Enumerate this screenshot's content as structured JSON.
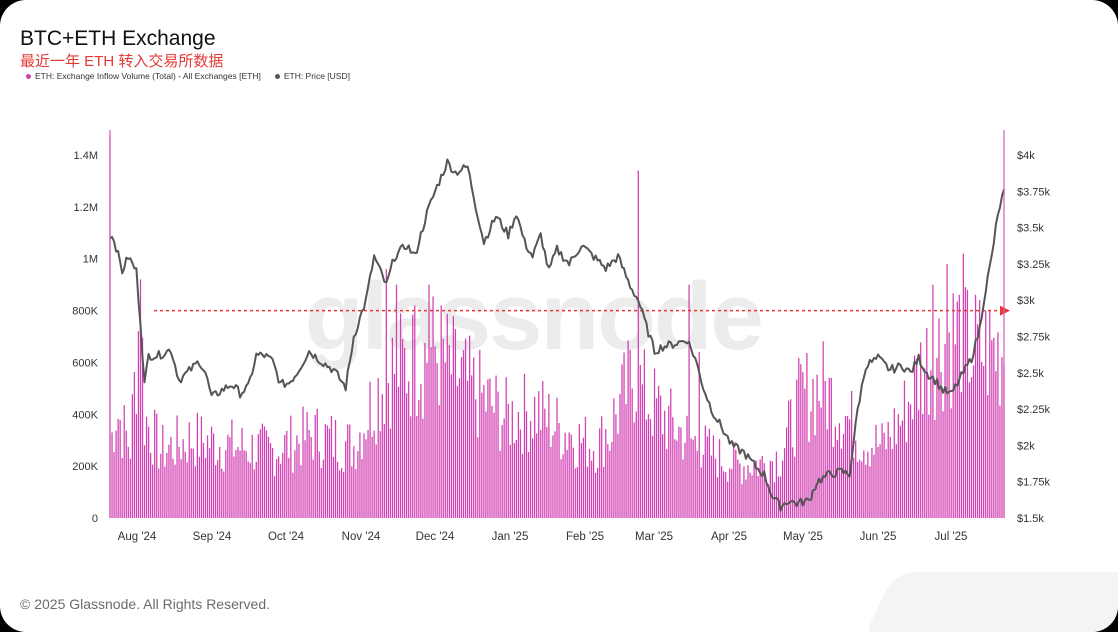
{
  "title": "BTC+ETH Exchange",
  "subtitle": "最近一年 ETH 转入交易所数据",
  "footer": "© 2025 Glassnode. All Rights Reserved.",
  "watermark": "glassnode",
  "colors": {
    "inflow": "#d23fb2",
    "price": "#555555",
    "threshold": "#e53935"
  },
  "chart_data": {
    "type": "bar",
    "title": "BTC+ETH Exchange",
    "legend": [
      {
        "name": "ETH: Exchange Inflow Volume (Total) - All Exchanges [ETH]",
        "color": "#d23fb2"
      },
      {
        "name": "ETH: Price [USD]",
        "color": "#555555"
      }
    ],
    "legend_position": "top-left",
    "x_ticks": [
      "Aug '24",
      "Sep '24",
      "Oct '24",
      "Nov '24",
      "Dec '24",
      "Jan '25",
      "Feb '25",
      "Mar '25",
      "Apr '25",
      "May '25",
      "Jun '25",
      "Jul '25"
    ],
    "y_left": {
      "ticks": [
        "0",
        "200K",
        "400K",
        "600K",
        "800K",
        "1M",
        "1.2M",
        "1.4M"
      ],
      "range": [
        0,
        1400000
      ]
    },
    "y_right": {
      "ticks": [
        "$1.5k",
        "$1.75k",
        "$2k",
        "$2.25k",
        "$2.5k",
        "$2.75k",
        "$3k",
        "$3.25k",
        "$3.5k",
        "$3.75k",
        "$4k"
      ],
      "range": [
        1500,
        4000
      ]
    },
    "threshold": {
      "value": 800000,
      "style": "dashed arrow"
    },
    "inflow_anchors": [
      [
        0,
        280000
      ],
      [
        3,
        460000
      ],
      [
        6,
        380000
      ],
      [
        10,
        300000
      ],
      [
        15,
        900000
      ],
      [
        17,
        420000
      ],
      [
        25,
        280000
      ],
      [
        40,
        330000
      ],
      [
        60,
        300000
      ],
      [
        80,
        280000
      ],
      [
        100,
        350000
      ],
      [
        120,
        300000
      ],
      [
        130,
        500000
      ],
      [
        138,
        620000
      ],
      [
        150,
        650000
      ],
      [
        160,
        700000
      ],
      [
        170,
        600000
      ],
      [
        180,
        520000
      ],
      [
        195,
        420000
      ],
      [
        210,
        450000
      ],
      [
        220,
        380000
      ],
      [
        230,
        330000
      ],
      [
        240,
        300000
      ],
      [
        250,
        450000
      ],
      [
        258,
        600000
      ],
      [
        262,
        520000
      ],
      [
        275,
        400000
      ],
      [
        285,
        330000
      ],
      [
        300,
        250000
      ],
      [
        310,
        220000
      ],
      [
        322,
        230000
      ],
      [
        330,
        260000
      ],
      [
        340,
        500000
      ],
      [
        350,
        550000
      ],
      [
        360,
        450000
      ],
      [
        370,
        330000
      ],
      [
        380,
        300000
      ],
      [
        390,
        420000
      ],
      [
        400,
        640000
      ],
      [
        410,
        720000
      ],
      [
        420,
        800000
      ],
      [
        424,
        700000
      ]
    ],
    "inflow_spikes": [
      [
        0,
        1480000
      ],
      [
        15,
        920000
      ],
      [
        136,
        960000
      ],
      [
        141,
        900000
      ],
      [
        150,
        820000
      ],
      [
        157,
        900000
      ],
      [
        226,
        330000
      ],
      [
        246,
        260000
      ],
      [
        260,
        1340000
      ],
      [
        285,
        900000
      ],
      [
        290,
        640000
      ],
      [
        405,
        900000
      ],
      [
        412,
        980000
      ],
      [
        418,
        860000
      ],
      [
        422,
        880000
      ]
    ],
    "price": [
      [
        0,
        3450
      ],
      [
        2,
        3420
      ],
      [
        6,
        3200
      ],
      [
        9,
        3300
      ],
      [
        13,
        3200
      ],
      [
        15,
        2850
      ],
      [
        17,
        2420
      ],
      [
        19,
        2620
      ],
      [
        24,
        2620
      ],
      [
        30,
        2660
      ],
      [
        34,
        2450
      ],
      [
        38,
        2500
      ],
      [
        44,
        2580
      ],
      [
        47,
        2500
      ],
      [
        50,
        2330
      ],
      [
        55,
        2380
      ],
      [
        60,
        2420
      ],
      [
        64,
        2360
      ],
      [
        68,
        2400
      ],
      [
        72,
        2620
      ],
      [
        76,
        2620
      ],
      [
        80,
        2580
      ],
      [
        84,
        2420
      ],
      [
        88,
        2430
      ],
      [
        92,
        2500
      ],
      [
        98,
        2650
      ],
      [
        104,
        2580
      ],
      [
        110,
        2520
      ],
      [
        116,
        2400
      ],
      [
        120,
        2750
      ],
      [
        126,
        3000
      ],
      [
        130,
        3300
      ],
      [
        136,
        3100
      ],
      [
        140,
        3300
      ],
      [
        146,
        3380
      ],
      [
        150,
        3300
      ],
      [
        156,
        3600
      ],
      [
        160,
        3750
      ],
      [
        166,
        3950
      ],
      [
        170,
        3880
      ],
      [
        176,
        3920
      ],
      [
        180,
        3650
      ],
      [
        184,
        3400
      ],
      [
        190,
        3580
      ],
      [
        196,
        3450
      ],
      [
        200,
        3600
      ],
      [
        204,
        3400
      ],
      [
        208,
        3300
      ],
      [
        212,
        3450
      ],
      [
        216,
        3200
      ],
      [
        220,
        3350
      ],
      [
        226,
        3250
      ],
      [
        232,
        3380
      ],
      [
        238,
        3300
      ],
      [
        244,
        3220
      ],
      [
        250,
        3300
      ],
      [
        256,
        3100
      ],
      [
        260,
        3000
      ],
      [
        264,
        2820
      ],
      [
        268,
        2650
      ],
      [
        272,
        2680
      ],
      [
        278,
        2700
      ],
      [
        284,
        2730
      ],
      [
        288,
        2600
      ],
      [
        292,
        2400
      ],
      [
        296,
        2250
      ],
      [
        300,
        2150
      ],
      [
        306,
        2000
      ],
      [
        312,
        1950
      ],
      [
        318,
        1850
      ],
      [
        322,
        1800
      ],
      [
        326,
        1650
      ],
      [
        330,
        1580
      ],
      [
        334,
        1620
      ],
      [
        338,
        1600
      ],
      [
        344,
        1620
      ],
      [
        348,
        1750
      ],
      [
        354,
        1800
      ],
      [
        360,
        1820
      ],
      [
        364,
        1800
      ],
      [
        368,
        2250
      ],
      [
        372,
        2550
      ],
      [
        378,
        2600
      ],
      [
        384,
        2520
      ],
      [
        390,
        2550
      ],
      [
        394,
        2500
      ],
      [
        398,
        2600
      ],
      [
        402,
        2500
      ],
      [
        406,
        2450
      ],
      [
        410,
        2380
      ],
      [
        414,
        2350
      ],
      [
        418,
        2450
      ],
      [
        420,
        2500
      ],
      [
        424,
        2600
      ],
      [
        428,
        2800
      ],
      [
        430,
        3000
      ],
      [
        434,
        3300
      ],
      [
        436,
        3500
      ],
      [
        438,
        3650
      ],
      [
        440,
        3750
      ]
    ],
    "days": 441
  }
}
